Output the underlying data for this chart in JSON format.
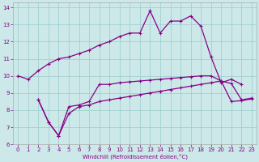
{
  "xlabel": "Windchill (Refroidissement éolien,°C)",
  "line_color": "#880088",
  "bg_color": "#cce8e8",
  "grid_color": "#99cccc",
  "xlim": [
    -0.5,
    23.5
  ],
  "ylim": [
    6,
    14.3
  ],
  "yticks": [
    6,
    7,
    8,
    9,
    10,
    11,
    12,
    13,
    14
  ],
  "xticks": [
    0,
    1,
    2,
    3,
    4,
    5,
    6,
    7,
    8,
    9,
    10,
    11,
    12,
    13,
    14,
    15,
    16,
    17,
    18,
    19,
    20,
    21,
    22,
    23
  ],
  "curve1_x": [
    0,
    1,
    2,
    3,
    4,
    5,
    6,
    7,
    8,
    9,
    10,
    11,
    12,
    13,
    14,
    15,
    16,
    17,
    18,
    19,
    20,
    21,
    22
  ],
  "curve1_y": [
    10.0,
    9.8,
    10.3,
    10.7,
    11.0,
    11.1,
    11.3,
    11.5,
    11.8,
    12.0,
    12.3,
    12.5,
    12.5,
    13.8,
    12.5,
    13.2,
    13.2,
    13.5,
    12.9,
    11.1,
    9.6,
    9.8,
    9.5
  ],
  "curve2_x": [
    0,
    1,
    2,
    3,
    4,
    5,
    6,
    7,
    8,
    9,
    10,
    11,
    12,
    13,
    14,
    15,
    16,
    17,
    18,
    19,
    20,
    21,
    22,
    23
  ],
  "curve2_y": [
    null,
    null,
    8.6,
    7.3,
    6.5,
    8.2,
    8.3,
    8.5,
    9.5,
    9.5,
    9.6,
    9.65,
    9.7,
    9.75,
    9.8,
    9.85,
    9.9,
    9.95,
    10.0,
    10.0,
    9.7,
    9.55,
    8.6,
    8.7
  ],
  "curve3_x": [
    2,
    3,
    4,
    5,
    6,
    7,
    8,
    9,
    10,
    11,
    12,
    13,
    14,
    15,
    16,
    17,
    18,
    19,
    20,
    21,
    22,
    23
  ],
  "curve3_y": [
    8.6,
    7.3,
    6.5,
    7.8,
    8.2,
    8.3,
    8.5,
    8.6,
    8.7,
    8.8,
    8.9,
    9.0,
    9.1,
    9.2,
    9.3,
    9.4,
    9.5,
    9.6,
    9.7,
    8.5,
    8.55,
    8.65
  ]
}
